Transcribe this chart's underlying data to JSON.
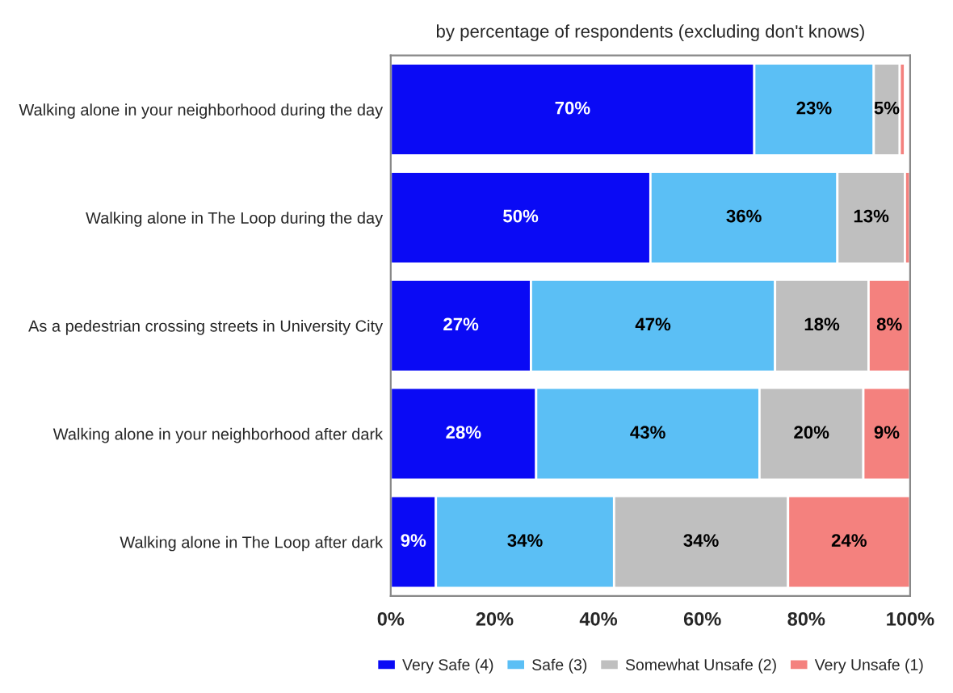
{
  "chart_data": {
    "type": "bar",
    "orientation": "horizontal",
    "stacked": true,
    "title": "by percentage of respondents (excluding don't knows)",
    "categories": [
      "Walking alone in your neighborhood during the day",
      "Walking alone in The Loop during the day",
      "As a pedestrian crossing streets in University City",
      "Walking alone in your neighborhood after dark",
      "Walking alone in The Loop after dark"
    ],
    "series": [
      {
        "name": "Very Safe (4)",
        "color": "#0a0af5",
        "values": [
          70,
          50,
          27,
          28,
          8.7
        ],
        "value_labels": [
          "70%",
          "50%",
          "27%",
          "28%",
          "9%"
        ]
      },
      {
        "name": "Safe (3)",
        "color": "#5bbff5",
        "values": [
          23,
          36,
          47,
          43,
          34.3
        ],
        "value_labels": [
          "23%",
          "36%",
          "47%",
          "43%",
          "34%"
        ]
      },
      {
        "name": "Somewhat Unsafe (2)",
        "color": "#bfbfbf",
        "values": [
          5,
          13,
          18,
          20,
          33.5
        ],
        "value_labels": [
          "5%",
          "13%",
          "18%",
          "20%",
          "34%"
        ]
      },
      {
        "name": "Very Unsafe (1)",
        "color": "#f4817e",
        "values": [
          1,
          1,
          8,
          9,
          23.5
        ],
        "value_labels": [
          null,
          null,
          "8%",
          "9%",
          "24%"
        ]
      }
    ],
    "xlim": [
      0,
      100
    ],
    "xticks": [
      {
        "value": 0,
        "label": "0%"
      },
      {
        "value": 20,
        "label": "20%"
      },
      {
        "value": 40,
        "label": "40%"
      },
      {
        "value": 60,
        "label": "60%"
      },
      {
        "value": 80,
        "label": "80%"
      },
      {
        "value": 100,
        "label": "100%"
      }
    ],
    "grid": false,
    "legend": "bottom"
  }
}
